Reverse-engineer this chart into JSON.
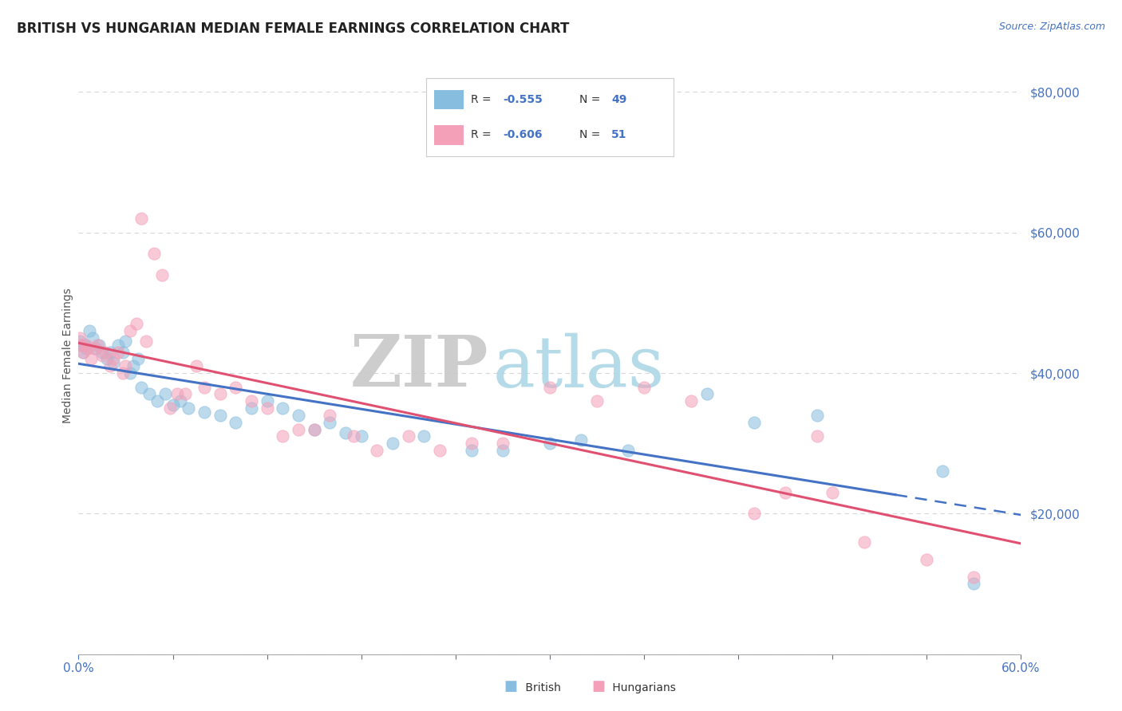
{
  "title": "BRITISH VS HUNGARIAN MEDIAN FEMALE EARNINGS CORRELATION CHART",
  "source": "Source: ZipAtlas.com",
  "ylabel": "Median Female Earnings",
  "yticks": [
    0,
    20000,
    40000,
    60000,
    80000
  ],
  "legend_r_british": "-0.555",
  "legend_n_british": "49",
  "legend_r_hungarian": "-0.606",
  "legend_n_hungarian": "51",
  "british_color": "#87BDDE",
  "hungarian_color": "#F4A0B8",
  "british_line_color": "#4472C4",
  "hungarian_line_color": "#E05070",
  "background_color": "#FFFFFF",
  "grid_color": "#CCCCCC",
  "british_points": [
    [
      0.001,
      44500
    ],
    [
      0.002,
      44000
    ],
    [
      0.003,
      43000
    ],
    [
      0.004,
      44000
    ],
    [
      0.005,
      43500
    ],
    [
      0.007,
      46000
    ],
    [
      0.009,
      45000
    ],
    [
      0.011,
      43500
    ],
    [
      0.013,
      44000
    ],
    [
      0.015,
      43000
    ],
    [
      0.018,
      42000
    ],
    [
      0.02,
      43000
    ],
    [
      0.022,
      41500
    ],
    [
      0.025,
      44000
    ],
    [
      0.028,
      43000
    ],
    [
      0.03,
      44500
    ],
    [
      0.033,
      40000
    ],
    [
      0.035,
      41000
    ],
    [
      0.038,
      42000
    ],
    [
      0.04,
      38000
    ],
    [
      0.045,
      37000
    ],
    [
      0.05,
      36000
    ],
    [
      0.055,
      37000
    ],
    [
      0.06,
      35500
    ],
    [
      0.065,
      36000
    ],
    [
      0.07,
      35000
    ],
    [
      0.08,
      34500
    ],
    [
      0.09,
      34000
    ],
    [
      0.1,
      33000
    ],
    [
      0.11,
      35000
    ],
    [
      0.12,
      36000
    ],
    [
      0.13,
      35000
    ],
    [
      0.14,
      34000
    ],
    [
      0.15,
      32000
    ],
    [
      0.16,
      33000
    ],
    [
      0.17,
      31500
    ],
    [
      0.18,
      31000
    ],
    [
      0.2,
      30000
    ],
    [
      0.22,
      31000
    ],
    [
      0.25,
      29000
    ],
    [
      0.27,
      29000
    ],
    [
      0.3,
      30000
    ],
    [
      0.32,
      30500
    ],
    [
      0.35,
      29000
    ],
    [
      0.4,
      37000
    ],
    [
      0.43,
      33000
    ],
    [
      0.47,
      34000
    ],
    [
      0.55,
      26000
    ],
    [
      0.57,
      10000
    ]
  ],
  "hungarian_points": [
    [
      0.001,
      45000
    ],
    [
      0.002,
      44000
    ],
    [
      0.003,
      43000
    ],
    [
      0.005,
      44000
    ],
    [
      0.006,
      43500
    ],
    [
      0.008,
      42000
    ],
    [
      0.01,
      43500
    ],
    [
      0.012,
      44000
    ],
    [
      0.015,
      42500
    ],
    [
      0.017,
      43000
    ],
    [
      0.02,
      41000
    ],
    [
      0.022,
      42000
    ],
    [
      0.025,
      43000
    ],
    [
      0.028,
      40000
    ],
    [
      0.03,
      41000
    ],
    [
      0.033,
      46000
    ],
    [
      0.037,
      47000
    ],
    [
      0.04,
      62000
    ],
    [
      0.043,
      44500
    ],
    [
      0.048,
      57000
    ],
    [
      0.053,
      54000
    ],
    [
      0.058,
      35000
    ],
    [
      0.063,
      37000
    ],
    [
      0.068,
      37000
    ],
    [
      0.075,
      41000
    ],
    [
      0.08,
      38000
    ],
    [
      0.09,
      37000
    ],
    [
      0.1,
      38000
    ],
    [
      0.11,
      36000
    ],
    [
      0.12,
      35000
    ],
    [
      0.13,
      31000
    ],
    [
      0.14,
      32000
    ],
    [
      0.15,
      32000
    ],
    [
      0.16,
      34000
    ],
    [
      0.175,
      31000
    ],
    [
      0.19,
      29000
    ],
    [
      0.21,
      31000
    ],
    [
      0.23,
      29000
    ],
    [
      0.25,
      30000
    ],
    [
      0.27,
      30000
    ],
    [
      0.3,
      38000
    ],
    [
      0.33,
      36000
    ],
    [
      0.36,
      38000
    ],
    [
      0.39,
      36000
    ],
    [
      0.43,
      20000
    ],
    [
      0.45,
      23000
    ],
    [
      0.47,
      31000
    ],
    [
      0.48,
      23000
    ],
    [
      0.5,
      16000
    ],
    [
      0.54,
      13500
    ],
    [
      0.57,
      11000
    ]
  ],
  "xlim": [
    0.0,
    0.6
  ],
  "ylim": [
    0,
    85000
  ],
  "title_fontsize": 12,
  "tick_color": "#4472C4"
}
